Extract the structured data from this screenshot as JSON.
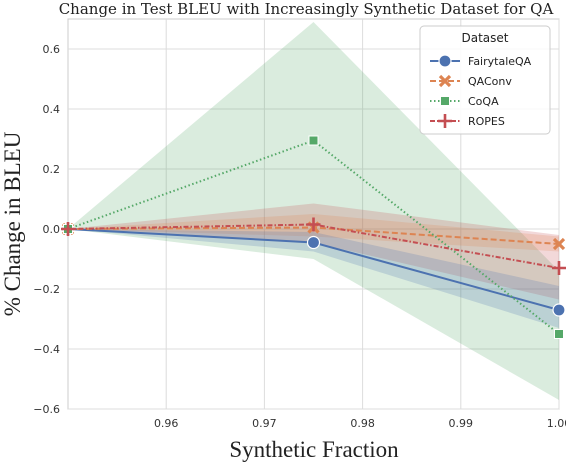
{
  "chart_data": {
    "type": "line",
    "title": "Change in Test BLEU with Increasingly Synthetic Dataset for QA",
    "xlabel": "Synthetic Fraction",
    "ylabel": "% Change in BLEU",
    "xlim": [
      0.95,
      1.0
    ],
    "ylim": [
      -0.6,
      0.7
    ],
    "xticks": [
      0.96,
      0.97,
      0.98,
      0.99,
      1.0
    ],
    "xtick_labels": [
      "0.96",
      "0.97",
      "0.98",
      "0.99",
      "1.00"
    ],
    "yticks": [
      -0.6,
      -0.4,
      -0.2,
      0.0,
      0.2,
      0.4,
      0.6
    ],
    "ytick_labels": [
      "−0.6",
      "−0.4",
      "−0.2",
      "0.0",
      "0.2",
      "0.4",
      "0.6"
    ],
    "grid": true,
    "legend": {
      "title": "Dataset",
      "placement": "top-right"
    },
    "x": [
      0.95,
      0.975,
      1.0
    ],
    "series": [
      {
        "name": "FairytaleQA",
        "values": [
          0.0,
          -0.045,
          -0.27
        ],
        "ci_low": [
          0.0,
          -0.075,
          -0.33
        ],
        "ci_high": [
          0.0,
          -0.01,
          -0.19
        ],
        "color": "#4c72b0",
        "marker": "circle",
        "dash": "solid"
      },
      {
        "name": "QAConv",
        "values": [
          0.0,
          0.005,
          -0.05
        ],
        "ci_low": [
          0.0,
          -0.025,
          -0.075
        ],
        "ci_high": [
          0.0,
          0.05,
          -0.025
        ],
        "color": "#dd8452",
        "marker": "x",
        "dash": "dashed"
      },
      {
        "name": "CoQA",
        "values": [
          0.0,
          0.295,
          -0.35
        ],
        "ci_low": [
          0.0,
          -0.1,
          -0.57
        ],
        "ci_high": [
          0.0,
          0.69,
          -0.14
        ],
        "color": "#55a868",
        "marker": "square",
        "dash": "dotted"
      },
      {
        "name": "ROPES",
        "values": [
          0.0,
          0.015,
          -0.13
        ],
        "ci_low": [
          0.0,
          -0.045,
          -0.235
        ],
        "ci_high": [
          0.0,
          0.085,
          -0.02
        ],
        "color": "#c44e52",
        "marker": "plus",
        "dash": "dashdot"
      }
    ]
  }
}
